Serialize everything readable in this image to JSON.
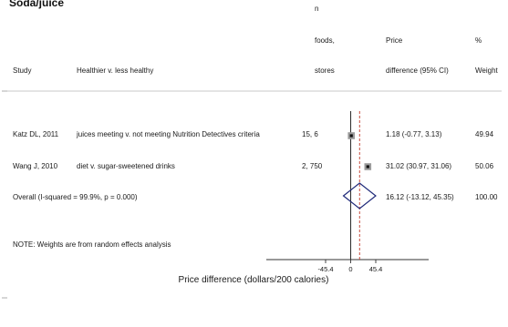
{
  "title": "Soda/juice",
  "headers": {
    "study": "Study",
    "comparison": "Healthier v. less healthy",
    "n_top": "n",
    "n_mid": "foods,",
    "n_bottom": "stores",
    "price_top": "Price",
    "price_bottom": "difference (95% CI)",
    "weight_top": "%",
    "weight_bottom": "Weight"
  },
  "rows": [
    {
      "study": "Katz DL, 2011",
      "comparison": "juices meeting v. not meeting Nutrition Detectives criteria",
      "n": "15, 6",
      "estimate_text": "1.18 (-0.77, 3.13)",
      "weight": "49.94"
    },
    {
      "study": "Wang J, 2010",
      "comparison": "diet v. sugar-sweetened drinks",
      "n": "2, 750",
      "estimate_text": "31.02 (30.97, 31.06)",
      "weight": "50.06"
    }
  ],
  "overall": {
    "label": "Overall  (I-squared = 99.9%, p = 0.000)",
    "estimate_text": "16.12 (-13.12, 45.35)",
    "weight": "100.00"
  },
  "note": "NOTE: Weights are from random effects analysis",
  "chart_data": {
    "type": "forest",
    "xlabel": "Price difference (dollars/200 calories)",
    "xlim": [
      -45.4,
      45.4
    ],
    "xticks": [
      {
        "value": -45.4,
        "label": "-45.4"
      },
      {
        "value": 0,
        "label": "0"
      },
      {
        "value": 45.4,
        "label": "45.4"
      }
    ],
    "null_line": 0,
    "studies": [
      {
        "study": "Katz DL, 2011",
        "estimate": 1.18,
        "ci_low": -0.77,
        "ci_high": 3.13,
        "weight": 49.94
      },
      {
        "study": "Wang J, 2010",
        "estimate": 31.02,
        "ci_low": 30.97,
        "ci_high": 31.06,
        "weight": 50.06
      }
    ],
    "overall": {
      "estimate": 16.12,
      "ci_low": -13.12,
      "ci_high": 45.35
    },
    "colors": {
      "null_line": "#333333",
      "overall_line": "#c0392b",
      "diamond": "#1f2a7a",
      "marker": "#111111",
      "box": "#9a9a9a"
    }
  }
}
